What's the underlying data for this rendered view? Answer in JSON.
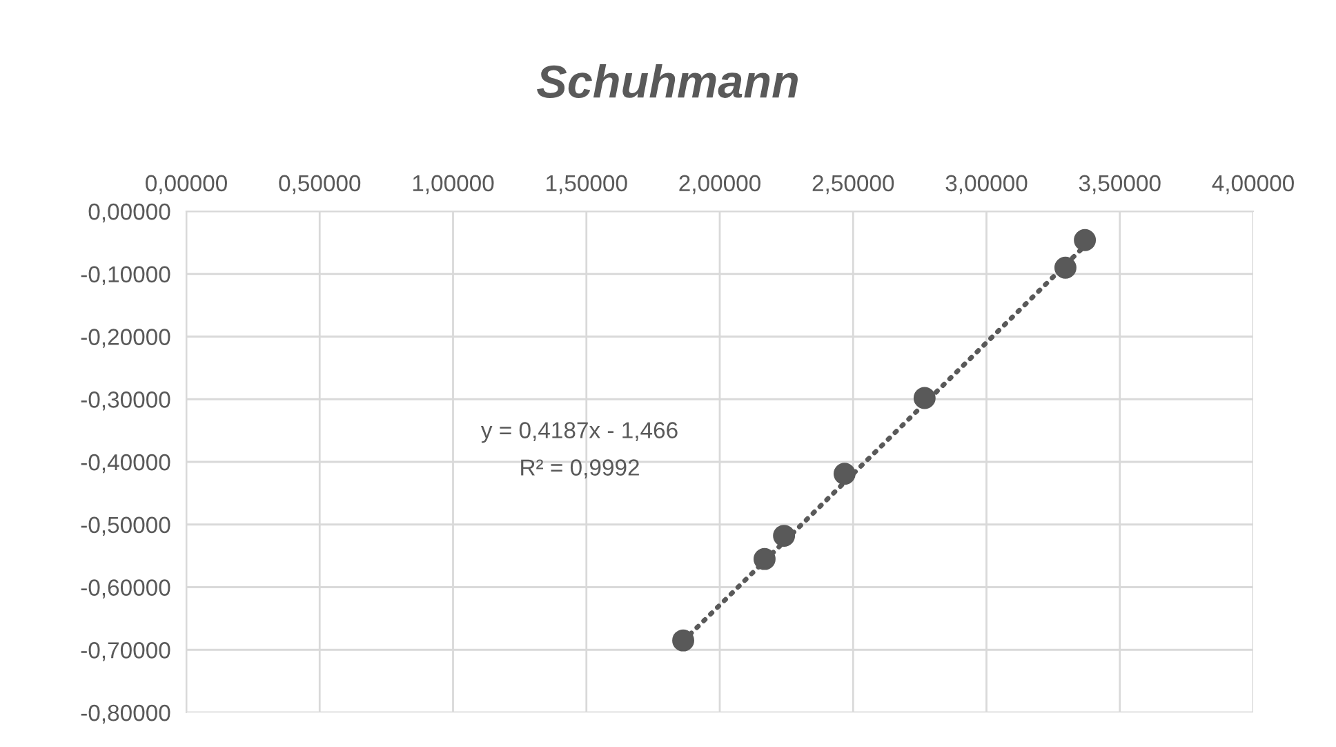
{
  "chart_data": {
    "type": "scatter",
    "title": "Schuhmann",
    "series": [
      {
        "color": "#595959",
        "marker": "circle",
        "x": [
          1.863,
          2.168,
          2.241,
          2.468,
          2.768,
          3.296,
          3.369
        ],
        "values": [
          -0.685,
          -0.555,
          -0.518,
          -0.419,
          -0.298,
          -0.09,
          -0.046
        ]
      },
      {
        "type": "line",
        "color": "#595959",
        "line_style": "dotted",
        "x": [
          1.863,
          3.369
        ],
        "values": [
          -0.686,
          -0.055
        ]
      }
    ],
    "xlim": [
      0,
      4
    ],
    "xticks": [
      {
        "value": 0,
        "label": "0,00000"
      },
      {
        "value": 0.5,
        "label": "0,50000"
      },
      {
        "value": 1,
        "label": "1,00000"
      },
      {
        "value": 1.5,
        "label": "1,50000"
      },
      {
        "value": 2,
        "label": "2,00000"
      },
      {
        "value": 2.5,
        "label": "2,50000"
      },
      {
        "value": 3,
        "label": "3,00000"
      },
      {
        "value": 3.5,
        "label": "3,50000"
      },
      {
        "value": 4,
        "label": "4,00000"
      }
    ],
    "ylim": [
      -0.8,
      0
    ],
    "yticks": [
      {
        "value": 0,
        "label": "0,00000"
      },
      {
        "value": -0.1,
        "label": "-0,10000"
      },
      {
        "value": -0.2,
        "label": "-0,20000"
      },
      {
        "value": -0.3,
        "label": "-0,30000"
      },
      {
        "value": -0.4,
        "label": "-0,40000"
      },
      {
        "value": -0.5,
        "label": "-0,50000"
      },
      {
        "value": -0.6,
        "label": "-0,60000"
      },
      {
        "value": -0.7,
        "label": "-0,70000"
      },
      {
        "value": -0.8,
        "label": "-0,80000"
      }
    ],
    "annotations": [
      "y = 0,4187x - 1,466",
      "R² = 0,9992"
    ],
    "grid": true,
    "legend": false
  }
}
